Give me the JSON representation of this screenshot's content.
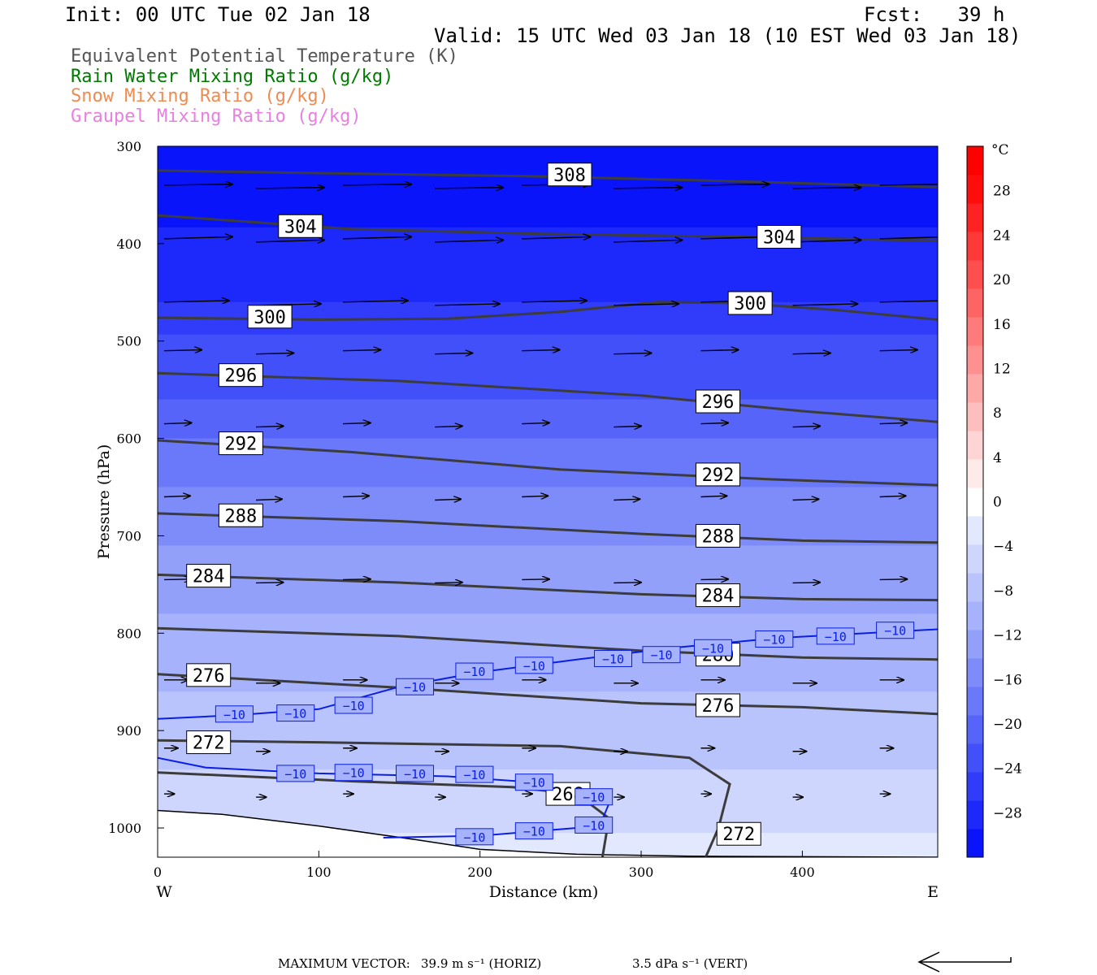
{
  "header": {
    "init": "Init: 00 UTC Tue 02 Jan 18",
    "fcst": "Fcst:   39 h",
    "valid": "Valid: 15 UTC Wed 03 Jan 18 (10 EST Wed 03 Jan 18)"
  },
  "legend": [
    {
      "label": "Equivalent Potential Temperature (K)",
      "color": "#555555"
    },
    {
      "label": "Rain Water Mixing Ratio (g/kg)",
      "color": "#007a00"
    },
    {
      "label": "Snow Mixing Ratio (g/kg)",
      "color": "#f08a50"
    },
    {
      "label": "Graupel Mixing Ratio (g/kg)",
      "color": "#e880e0"
    }
  ],
  "footer": {
    "max_vector_label": "MAXIMUM VECTOR:",
    "horiz": "39.9 m s⁻¹ (HORIZ)",
    "vert": "3.5 dPa s⁻¹ (VERT)"
  },
  "chart_data": {
    "type": "cross-section",
    "xlabel": "Distance (km)",
    "ylabel": "Pressure (hPa)",
    "x_left_label": "W",
    "x_right_label": "E",
    "xlim": [
      0,
      484
    ],
    "ylim": [
      300,
      1030
    ],
    "x_ticks": [
      0,
      100,
      200,
      300,
      400
    ],
    "y_ticks": [
      300,
      400,
      500,
      600,
      700,
      800,
      900,
      1000
    ],
    "colorbar": {
      "unit": "°C",
      "ticks": [
        28,
        24,
        20,
        16,
        12,
        8,
        4,
        0,
        -4,
        -8,
        -12,
        -16,
        -20,
        -24,
        -28
      ],
      "range": [
        -32,
        32
      ],
      "colors": [
        "#0a14fa",
        "#1d28fa",
        "#303cfa",
        "#4250fa",
        "#5664fa",
        "#6a78fa",
        "#7e8cfa",
        "#92a0fa",
        "#a6b2fb",
        "#bac4fc",
        "#ced6fd",
        "#e2e8fe",
        "#ffffff",
        "#ffeaea",
        "#ffd4d4",
        "#ffbebe",
        "#ffa8a8",
        "#ff9090",
        "#ff7a7a",
        "#ff6464",
        "#ff4e4e",
        "#ff3838",
        "#ff2222",
        "#ff0c0c",
        "#ff0000"
      ]
    },
    "theta_e_contours": [
      {
        "label": "308",
        "points": [
          [
            0,
            325
          ],
          [
            120,
            328
          ],
          [
            240,
            331
          ],
          [
            360,
            336
          ],
          [
            484,
            342
          ]
        ],
        "label_at": [
          242,
          329
        ]
      },
      {
        "label": "304",
        "points": [
          [
            0,
            371
          ],
          [
            120,
            385
          ],
          [
            240,
            390
          ],
          [
            360,
            393
          ],
          [
            484,
            397
          ]
        ],
        "label_at": [
          75,
          382
        ]
      },
      {
        "label": "304",
        "points": [],
        "label_at": [
          372,
          393
        ]
      },
      {
        "label": "300",
        "points": [
          [
            0,
            476
          ],
          [
            100,
            478
          ],
          [
            180,
            477
          ],
          [
            250,
            470
          ],
          [
            310,
            460
          ],
          [
            360,
            461
          ],
          [
            420,
            468
          ],
          [
            484,
            478
          ]
        ],
        "label_at": [
          56,
          475
        ]
      },
      {
        "label": "300",
        "points": [],
        "label_at": [
          354,
          461
        ]
      },
      {
        "label": "296",
        "points": [
          [
            0,
            533
          ],
          [
            150,
            541
          ],
          [
            300,
            556
          ],
          [
            400,
            572
          ],
          [
            484,
            583
          ]
        ],
        "label_at": [
          38,
          535
        ]
      },
      {
        "label": "296",
        "points": [],
        "label_at": [
          334,
          562
        ]
      },
      {
        "label": "292",
        "points": [
          [
            0,
            602
          ],
          [
            120,
            614
          ],
          [
            250,
            632
          ],
          [
            380,
            642
          ],
          [
            484,
            648
          ]
        ],
        "label_at": [
          38,
          605
        ]
      },
      {
        "label": "292",
        "points": [],
        "label_at": [
          334,
          637
        ]
      },
      {
        "label": "288",
        "points": [
          [
            0,
            677
          ],
          [
            150,
            685
          ],
          [
            300,
            698
          ],
          [
            400,
            705
          ],
          [
            484,
            707
          ]
        ],
        "label_at": [
          38,
          679
        ]
      },
      {
        "label": "288",
        "points": [],
        "label_at": [
          334,
          700
        ]
      },
      {
        "label": "284",
        "points": [
          [
            0,
            740
          ],
          [
            150,
            748
          ],
          [
            300,
            760
          ],
          [
            400,
            765
          ],
          [
            484,
            766
          ]
        ],
        "label_at": [
          18,
          741
        ]
      },
      {
        "label": "284",
        "points": [],
        "label_at": [
          334,
          761
        ]
      },
      {
        "label": "280",
        "points": [
          [
            0,
            795
          ],
          [
            150,
            803
          ],
          [
            300,
            818
          ],
          [
            400,
            825
          ],
          [
            484,
            827
          ]
        ],
        "label_at": [
          334,
          822
        ]
      },
      {
        "label": "276",
        "points": [
          [
            0,
            842
          ],
          [
            150,
            856
          ],
          [
            300,
            872
          ],
          [
            400,
            876
          ],
          [
            484,
            883
          ]
        ],
        "label_at": [
          18,
          843
        ]
      },
      {
        "label": "276",
        "points": [],
        "label_at": [
          334,
          874
        ]
      },
      {
        "label": "272",
        "points": [
          [
            0,
            910
          ],
          [
            100,
            912
          ],
          [
            250,
            916
          ],
          [
            330,
            928
          ],
          [
            355,
            955
          ],
          [
            348,
            1000
          ],
          [
            340,
            1030
          ]
        ],
        "label_at": [
          18,
          912
        ]
      },
      {
        "label": "272",
        "points": [],
        "label_at": [
          347,
          1006
        ]
      },
      {
        "label": "268",
        "points": [
          [
            0,
            943
          ],
          [
            120,
            952
          ],
          [
            220,
            958
          ],
          [
            260,
            965
          ],
          [
            280,
            990
          ],
          [
            276,
            1030
          ]
        ],
        "label_at": [
          241,
          965
        ]
      }
    ],
    "temperature_contours": [
      {
        "label": "-10",
        "points": [
          [
            0,
            888
          ],
          [
            50,
            884
          ],
          [
            100,
            878
          ],
          [
            150,
            855
          ],
          [
            200,
            840
          ],
          [
            260,
            827
          ],
          [
            320,
            815
          ],
          [
            384,
            805
          ],
          [
            440,
            800
          ],
          [
            484,
            796
          ]
        ],
        "label_positions": [
          [
            37,
            883
          ],
          [
            75,
            882
          ],
          [
            111,
            874
          ],
          [
            149,
            855
          ],
          [
            186,
            839
          ],
          [
            223,
            833
          ],
          [
            272,
            826
          ],
          [
            302,
            822
          ],
          [
            334,
            815
          ],
          [
            372,
            806
          ],
          [
            410,
            803
          ],
          [
            447,
            797
          ]
        ]
      },
      {
        "label": "-10",
        "points": [
          [
            0,
            928
          ],
          [
            30,
            938
          ],
          [
            100,
            944
          ],
          [
            180,
            947
          ],
          [
            250,
            955
          ],
          [
            280,
            975
          ],
          [
            275,
            995
          ],
          [
            260,
            1000
          ],
          [
            200,
            1008
          ],
          [
            140,
            1010
          ]
        ],
        "label_positions": [
          [
            75,
            944
          ],
          [
            111,
            943
          ],
          [
            149,
            944
          ],
          [
            186,
            945
          ],
          [
            223,
            953
          ],
          [
            260,
            968
          ],
          [
            186,
            1009
          ],
          [
            223,
            1003
          ],
          [
            260,
            997
          ]
        ]
      }
    ],
    "ground_pressure": [
      [
        0,
        982
      ],
      [
        40,
        986
      ],
      [
        100,
        998
      ],
      [
        160,
        1012
      ],
      [
        200,
        1022
      ],
      [
        260,
        1027
      ],
      [
        330,
        1029
      ],
      [
        484,
        1030
      ]
    ],
    "temperature_field": [
      {
        "p": 300,
        "t": -31
      },
      {
        "p": 400,
        "t": -29
      },
      {
        "p": 460,
        "t": -27
      },
      {
        "p": 500,
        "t": -24
      },
      {
        "p": 560,
        "t": -22
      },
      {
        "p": 620,
        "t": -18
      },
      {
        "p": 680,
        "t": -15
      },
      {
        "p": 740,
        "t": -13
      },
      {
        "p": 800,
        "t": -11
      },
      {
        "p": 860,
        "t": -9
      },
      {
        "p": 920,
        "t": -7
      },
      {
        "p": 980,
        "t": -5
      },
      {
        "p": 1030,
        "t": -3
      }
    ],
    "wind_vectors": [
      {
        "p": 340,
        "u": 1.0,
        "w": 0.02
      },
      {
        "p": 395,
        "u": 1.0,
        "w": 0.04
      },
      {
        "p": 460,
        "u": 0.95,
        "w": 0.03
      },
      {
        "p": 510,
        "u": 0.55,
        "w": 0.02
      },
      {
        "p": 585,
        "u": 0.4,
        "w": 0.02
      },
      {
        "p": 660,
        "u": 0.38,
        "w": 0.02
      },
      {
        "p": 745,
        "u": 0.4,
        "w": 0.01
      },
      {
        "p": 848,
        "u": 0.35,
        "w": 0.0
      },
      {
        "p": 918,
        "u": 0.2,
        "w": 0.0
      },
      {
        "p": 965,
        "u": 0.15,
        "w": 0.0
      }
    ]
  }
}
